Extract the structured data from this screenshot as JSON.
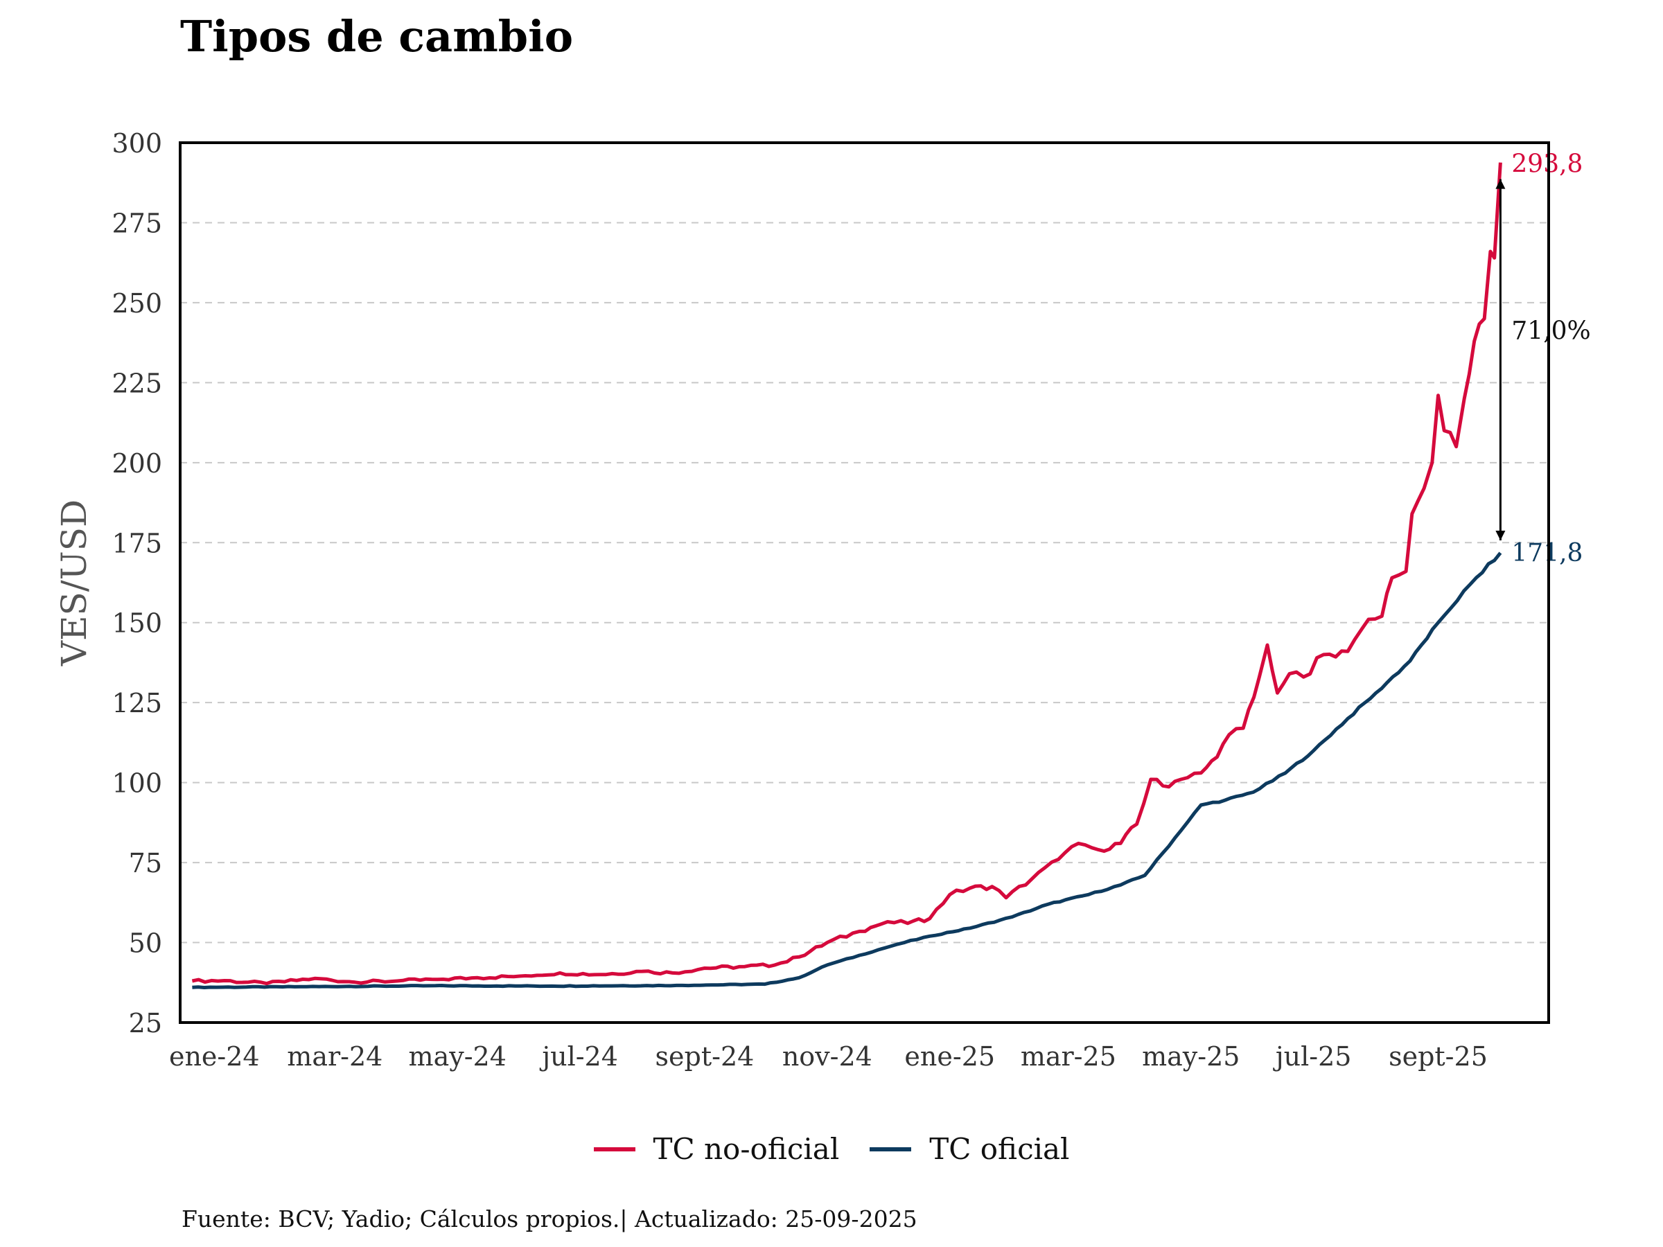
{
  "title": "Tipos de cambio",
  "source_note": "Fuente: BCV; Yadio; Cálculos propios.| Actualizado: 25-09-2025",
  "colors": {
    "no_oficial": "#d50a3c",
    "oficial": "#0d3a5e",
    "grid": "#c8c8c8"
  },
  "chart_data": {
    "type": "line",
    "ylabel": "VES/USD",
    "xlabel": "",
    "ylim": [
      25,
      300
    ],
    "yticks": [
      "25",
      "50",
      "75",
      "100",
      "125",
      "150",
      "175",
      "200",
      "225",
      "250",
      "275",
      "300"
    ],
    "x_range": [
      "2023-12-29",
      "2025-11-09"
    ],
    "xticks": [
      {
        "label": "ene-24",
        "date": "2024-01-15"
      },
      {
        "label": "mar-24",
        "date": "2024-03-15"
      },
      {
        "label": "may-24",
        "date": "2024-05-15"
      },
      {
        "label": "jul-24",
        "date": "2024-07-15"
      },
      {
        "label": "sept-24",
        "date": "2024-09-15"
      },
      {
        "label": "nov-24",
        "date": "2024-11-15"
      },
      {
        "label": "ene-25",
        "date": "2025-01-15"
      },
      {
        "label": "mar-25",
        "date": "2025-03-15"
      },
      {
        "label": "may-25",
        "date": "2025-05-15"
      },
      {
        "label": "jul-25",
        "date": "2025-07-15"
      },
      {
        "label": "sept-25",
        "date": "2025-09-15"
      }
    ],
    "grid": "horizontal dashed",
    "legend_position": "bottom",
    "series": [
      {
        "name": "TC no-oficial",
        "color": "#d50a3c",
        "points": [
          [
            "2024-01-04",
            38.0
          ],
          [
            "2024-01-20",
            38.1
          ],
          [
            "2024-02-10",
            37.2
          ],
          [
            "2024-03-05",
            38.8
          ],
          [
            "2024-03-25",
            37.6
          ],
          [
            "2024-04-15",
            38.0
          ],
          [
            "2024-05-05",
            38.5
          ],
          [
            "2024-05-25",
            39.0
          ],
          [
            "2024-06-15",
            39.5
          ],
          [
            "2024-07-05",
            40.5
          ],
          [
            "2024-07-25",
            40.0
          ],
          [
            "2024-08-15",
            41.0
          ],
          [
            "2024-08-30",
            40.5
          ],
          [
            "2024-09-15",
            42.0
          ],
          [
            "2024-10-05",
            42.5
          ],
          [
            "2024-10-20",
            43.0
          ],
          [
            "2024-11-01",
            45.5
          ],
          [
            "2024-11-15",
            50.0
          ],
          [
            "2024-12-01",
            53.5
          ],
          [
            "2024-12-15",
            56.5
          ],
          [
            "2024-12-25",
            56.0
          ],
          [
            "2025-01-05",
            57.5
          ],
          [
            "2025-01-15",
            65.0
          ],
          [
            "2025-01-25",
            67.0
          ],
          [
            "2025-02-05",
            67.5
          ],
          [
            "2025-02-12",
            64.0
          ],
          [
            "2025-02-25",
            70.0
          ],
          [
            "2025-03-10",
            76.0
          ],
          [
            "2025-03-20",
            81.0
          ],
          [
            "2025-03-30",
            79.0
          ],
          [
            "2025-04-10",
            81.0
          ],
          [
            "2025-04-18",
            87.0
          ],
          [
            "2025-04-25",
            101.0
          ],
          [
            "2025-05-01",
            99.0
          ],
          [
            "2025-05-10",
            101.0
          ],
          [
            "2025-05-20",
            103.0
          ],
          [
            "2025-05-28",
            108.0
          ],
          [
            "2025-06-03",
            115.0
          ],
          [
            "2025-06-10",
            117.0
          ],
          [
            "2025-06-18",
            133.0
          ],
          [
            "2025-06-22",
            143.0
          ],
          [
            "2025-06-27",
            128.0
          ],
          [
            "2025-07-03",
            134.0
          ],
          [
            "2025-07-10",
            133.0
          ],
          [
            "2025-07-20",
            140.0
          ],
          [
            "2025-08-01",
            141.0
          ],
          [
            "2025-08-08",
            148.0
          ],
          [
            "2025-08-18",
            152.0
          ],
          [
            "2025-08-23",
            164.0
          ],
          [
            "2025-08-30",
            166.0
          ],
          [
            "2025-09-02",
            184.0
          ],
          [
            "2025-09-08",
            192.0
          ],
          [
            "2025-09-12",
            200.0
          ],
          [
            "2025-09-15",
            221.0
          ],
          [
            "2025-09-18",
            210.0
          ],
          [
            "2025-09-24",
            205.0
          ],
          [
            "2025-09-28",
            220.0
          ],
          [
            "2025-10-03",
            238.0
          ],
          [
            "2025-10-08",
            245.0
          ],
          [
            "2025-10-11",
            266.0
          ],
          [
            "2025-10-13",
            264.0
          ],
          [
            "2025-10-16",
            293.8
          ]
        ]
      },
      {
        "name": "TC oficial",
        "color": "#0d3a5e",
        "points": [
          [
            "2024-01-04",
            36.0
          ],
          [
            "2024-03-01",
            36.2
          ],
          [
            "2024-05-01",
            36.5
          ],
          [
            "2024-07-01",
            36.4
          ],
          [
            "2024-09-01",
            36.6
          ],
          [
            "2024-10-15",
            37.0
          ],
          [
            "2024-11-01",
            39.0
          ],
          [
            "2024-11-15",
            43.0
          ],
          [
            "2024-12-01",
            46.0
          ],
          [
            "2024-12-20",
            49.5
          ],
          [
            "2025-01-05",
            52.0
          ],
          [
            "2025-01-25",
            54.5
          ],
          [
            "2025-02-15",
            58.0
          ],
          [
            "2025-03-05",
            62.0
          ],
          [
            "2025-03-25",
            65.0
          ],
          [
            "2025-04-10",
            68.0
          ],
          [
            "2025-04-22",
            71.0
          ],
          [
            "2025-05-01",
            78.0
          ],
          [
            "2025-05-10",
            85.0
          ],
          [
            "2025-05-20",
            93.0
          ],
          [
            "2025-06-01",
            94.5
          ],
          [
            "2025-06-15",
            97.0
          ],
          [
            "2025-07-01",
            103.0
          ],
          [
            "2025-07-15",
            110.0
          ],
          [
            "2025-08-01",
            120.0
          ],
          [
            "2025-08-15",
            128.0
          ],
          [
            "2025-09-01",
            138.0
          ],
          [
            "2025-09-15",
            150.0
          ],
          [
            "2025-10-01",
            162.0
          ],
          [
            "2025-10-16",
            171.8
          ]
        ]
      }
    ],
    "annotations": {
      "end_label_no_oficial": "293,8",
      "end_label_oficial": "171,8",
      "gap_label": "71,0%"
    }
  }
}
